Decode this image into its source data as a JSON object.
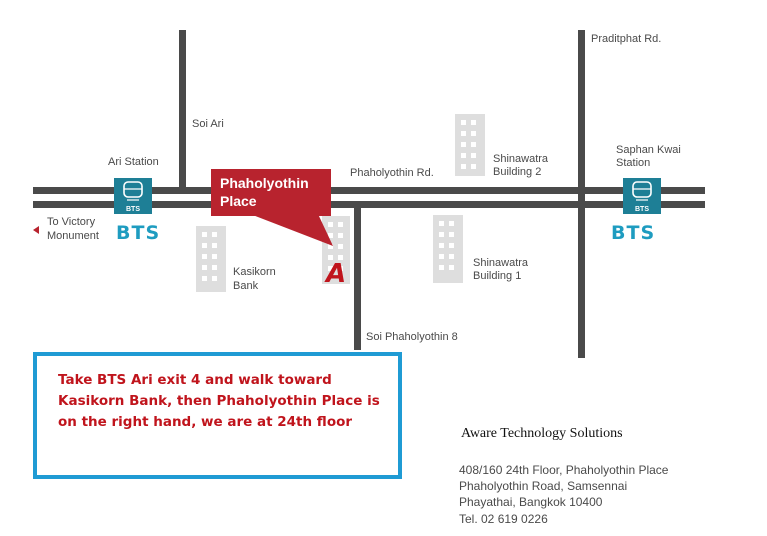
{
  "roads": {
    "soi_ari": "Soi Ari",
    "praditphat": "Praditphat Rd.",
    "phaholyothin": "Phaholyothin Rd.",
    "soi_phaholyothin_8": "Soi Phaholyothin 8"
  },
  "stations": {
    "ari": "Ari Station",
    "saphan_kwai_line1": "Saphan Kwai",
    "saphan_kwai_line2": "Station",
    "bts_badge": "BTS",
    "bts_label": "BTS"
  },
  "direction": {
    "line1": "To Victory",
    "line2": "Monument"
  },
  "buildings": {
    "kasikorn_line1": "Kasikorn",
    "kasikorn_line2": "Bank",
    "shinawatra2_line1": "Shinawatra",
    "shinawatra2_line2": "Building 2",
    "shinawatra1_line1": "Shinawatra",
    "shinawatra1_line2": "Building 1"
  },
  "destination": {
    "line1": "Phaholyothin",
    "line2": "Place",
    "marker": "A"
  },
  "note": {
    "text": "Take BTS Ari exit 4 and walk toward Kasikorn Bank, then Phaholyothin Place is on the right hand, we are at 24th floor"
  },
  "company": {
    "name": "Aware Technology Solutions",
    "address_line1": "408/160 24th Floor, Phaholyothin Place",
    "address_line2": "Phaholyothin Road, Samsennai",
    "address_line3": "Phayathai, Bangkok 10400",
    "phone": "Tel. 02 619 0226"
  },
  "colors": {
    "road": "#4a4a4a",
    "building": "#dedede",
    "bts": "#1e7f96",
    "bts_text": "#1e9cc0",
    "accent_red": "#b8232e",
    "note_border": "#1f9bd4",
    "note_text": "#c0141c"
  }
}
